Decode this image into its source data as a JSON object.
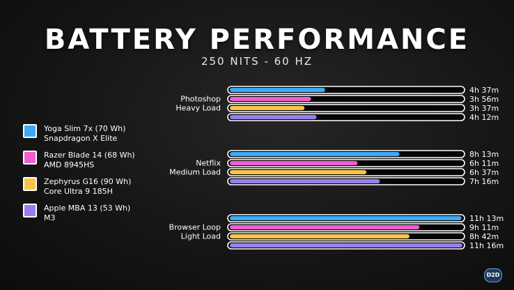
{
  "title": "BATTERY PERFORMANCE",
  "subtitle": "250 NITS - 60 HZ",
  "legend": [
    {
      "line1": "Yoga Slim 7x (70 Wh)",
      "line2": "Snapdragon X Elite",
      "color": "#3daaf5"
    },
    {
      "line1": "Razer Blade 14 (68 Wh)",
      "line2": "AMD 8945HS",
      "color": "#f25ed2"
    },
    {
      "line1": "Zephyrus G16 (90 Wh)",
      "line2": "Core Ultra 9 185H",
      "color": "#f7c548"
    },
    {
      "line1": "Apple MBA 13 (53 Wh)",
      "line2": "M3",
      "color": "#9b7cf0"
    }
  ],
  "chart_data": {
    "type": "bar",
    "orientation": "horizontal",
    "title": "BATTERY PERFORMANCE",
    "subtitle": "250 NITS - 60 HZ",
    "unit": "minutes",
    "series_names": [
      "Yoga Slim 7x (70 Wh)",
      "Razer Blade 14 (68 Wh)",
      "Zephyrus G16 (90 Wh)",
      "Apple MBA 13 (53 Wh)"
    ],
    "colors": [
      "#3daaf5",
      "#f25ed2",
      "#f7c548",
      "#9b7cf0"
    ],
    "max_value": 676,
    "groups": [
      {
        "label_line1": "Photoshop",
        "label_line2": "Heavy Load",
        "values": [
          277,
          236,
          217,
          252
        ],
        "labels": [
          "4h 37m",
          "3h 56m",
          "3h 37m",
          "4h 12m"
        ]
      },
      {
        "label_line1": "Netflix",
        "label_line2": "Medium Load",
        "values": [
          493,
          371,
          397,
          436
        ],
        "labels": [
          "8h 13m",
          "6h 11m",
          "6h 37m",
          "7h 16m"
        ]
      },
      {
        "label_line1": "Browser Loop",
        "label_line2": "Light Load",
        "values": [
          673,
          551,
          522,
          676
        ],
        "labels": [
          "11h 13m",
          "9h 11m",
          "8h 42m",
          "11h 16m"
        ]
      }
    ],
    "grid": false,
    "legend_position": "left"
  },
  "logo_text": "D2D"
}
